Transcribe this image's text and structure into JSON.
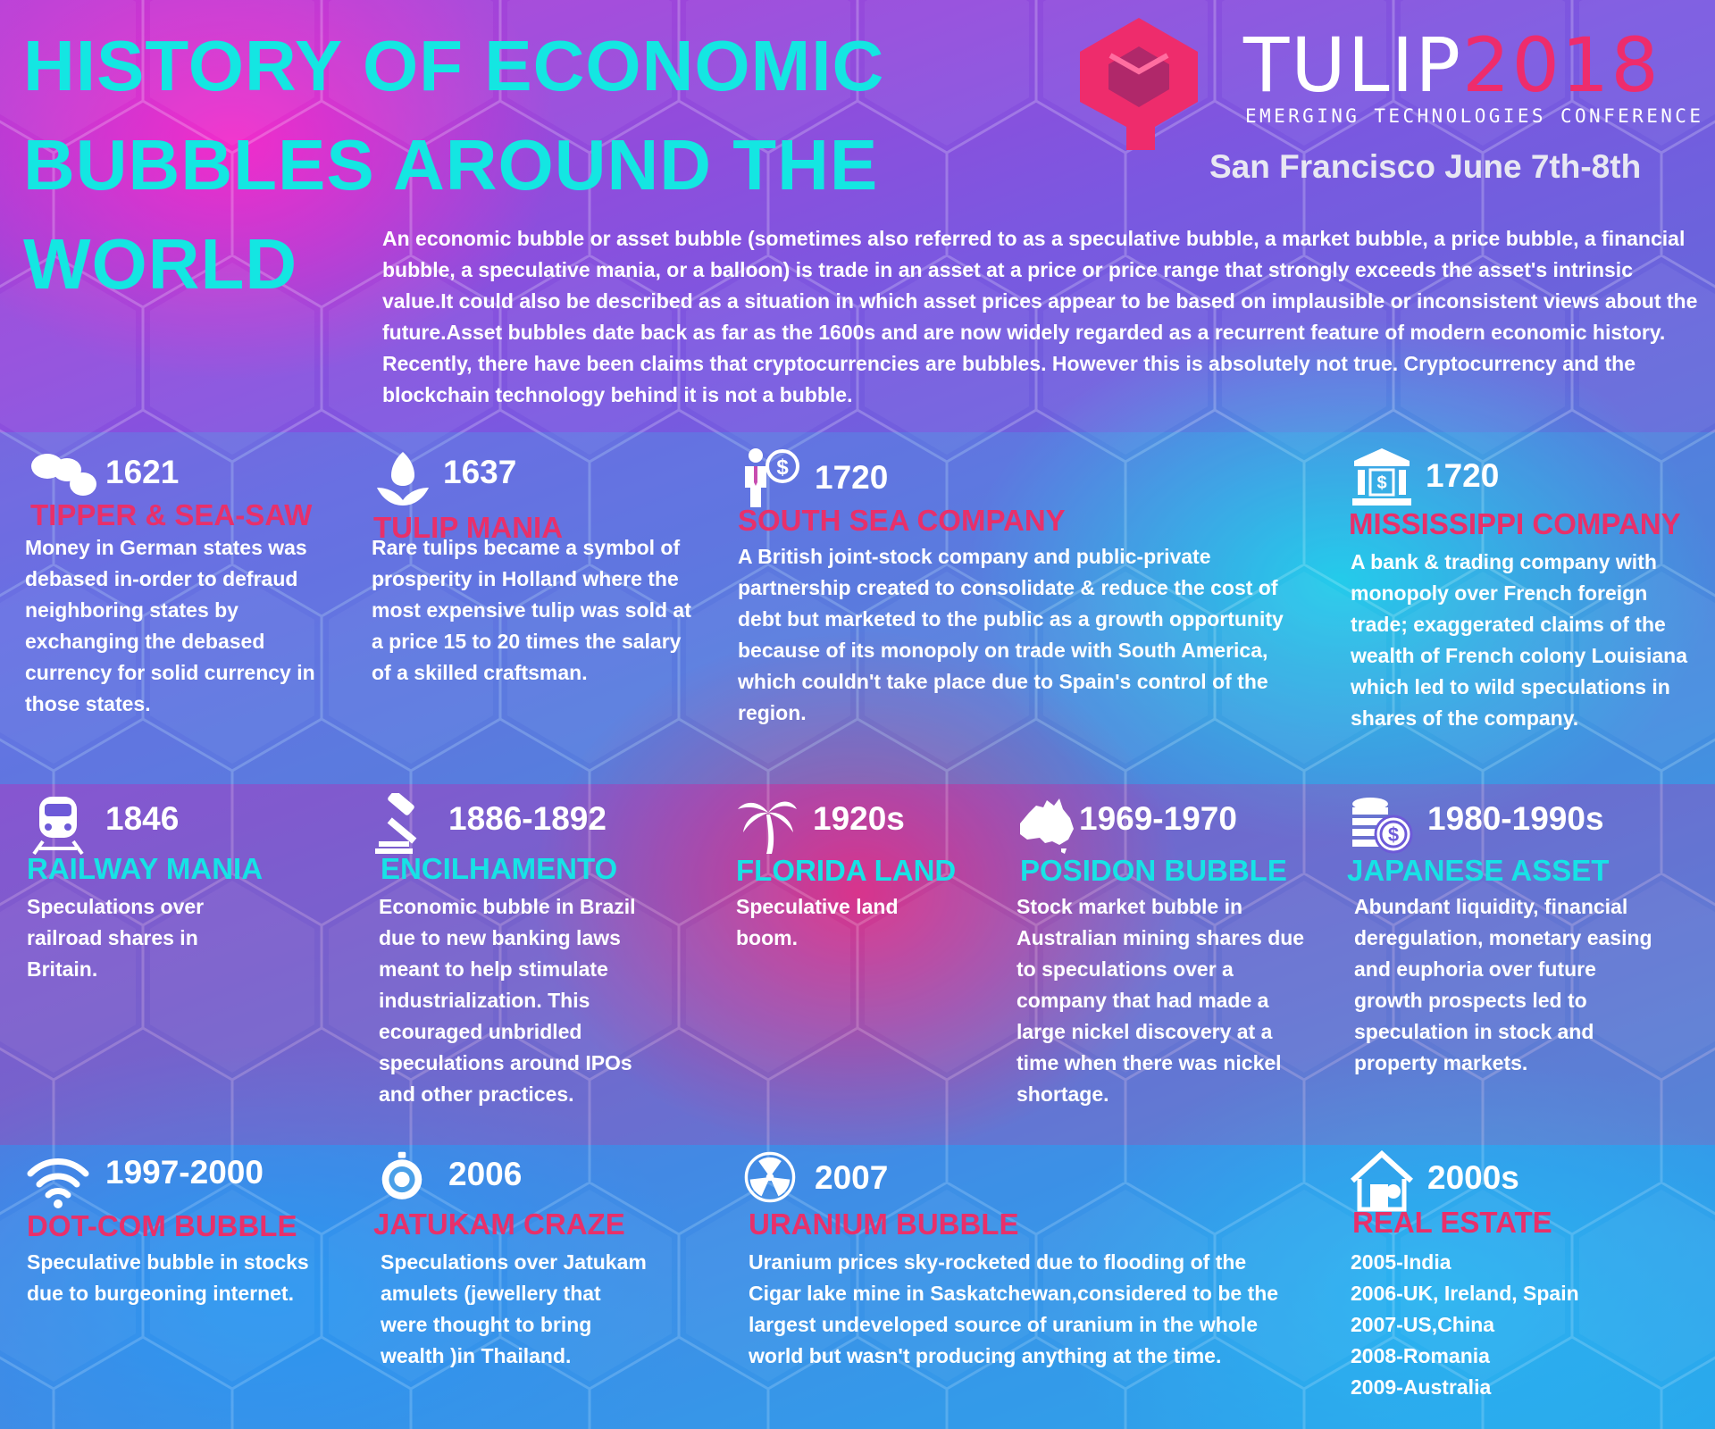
{
  "header": {
    "title": "HISTORY OF ECONOMIC BUBBLES AROUND THE WORLD",
    "intro": "An economic bubble or asset bubble (sometimes also referred to as a speculative bubble, a market bubble, a price bubble, a financial bubble, a speculative mania, or a balloon) is trade in an asset at a price or price range that strongly exceeds the asset's intrinsic value.It could also be described as a situation in which asset prices appear to be based on implausible or inconsistent views about the future.Asset bubbles date back as far as the 1600s and are now widely regarded as a recurrent feature of modern economic history. Recently, there have been claims that cryptocurrencies are bubbles. However this is absolutely not true. Cryptocurrency and the blockchain technology behind it is not a bubble."
  },
  "logo": {
    "word": "TULIP",
    "year": "2018",
    "tagline": "EMERGING TECHNOLOGIES CONFERENCE",
    "event_info": "San Francisco June 7th-8th"
  },
  "colors": {
    "title": "#14e6e2",
    "pink_heading": "#e8306a",
    "cyan_heading": "#17e2e6",
    "brand_pink": "#ee2c6c"
  },
  "bubbles": [
    {
      "icon": "coins-icon",
      "year": "1621",
      "name": "TIPPER & SEA-SAW",
      "color": "pink",
      "desc": "Money in German states was debased in-order to defraud neighboring states by exchanging the debased currency for solid currency in those states."
    },
    {
      "icon": "tulip-icon",
      "year": "1637",
      "name": "TULIP MANIA",
      "color": "pink",
      "desc": "Rare tulips became a symbol  of prosperity in Holland where the most expensive tulip was sold at a price 15 to 20 times the salary of a skilled craftsman."
    },
    {
      "icon": "businessman-dollar-icon",
      "year": "1720",
      "name": "SOUTH SEA COMPANY",
      "color": "pink",
      "desc": "A British joint-stock company and public-private partnership created to consolidate & reduce the cost of debt but marketed to the public as a growth opportunity because of its monopoly on trade with South America, which couldn't take place due to Spain's control of the region."
    },
    {
      "icon": "bank-icon",
      "year": "1720",
      "name": "MISSISSIPPI COMPANY",
      "color": "pink",
      "desc": "A bank & trading company with monopoly over French foreign trade; exaggerated claims of the wealth of French colony Louisiana which led to wild speculations in shares of the company."
    },
    {
      "icon": "train-icon",
      "year": "1846",
      "name": "RAILWAY MANIA",
      "color": "cyan",
      "desc": "Speculations over railroad shares in Britain."
    },
    {
      "icon": "gavel-icon",
      "year": "1886-1892",
      "name": "ENCILHAMENTO",
      "color": "cyan",
      "desc": "Economic bubble in Brazil due to new banking laws meant to help stimulate industrialization. This ecouraged unbridled speculations around IPOs and other practices."
    },
    {
      "icon": "palm-tree-icon",
      "year": "1920s",
      "name": "FLORIDA LAND",
      "color": "cyan",
      "desc": "Speculative land boom."
    },
    {
      "icon": "australia-map-icon",
      "year": "1969-1970",
      "name": "POSIDON BUBBLE",
      "color": "cyan",
      "desc": "Stock market bubble in Australian mining shares due to speculations over a company that had made a large nickel discovery at a time when there was nickel shortage."
    },
    {
      "icon": "coin-stack-icon",
      "year": "1980-1990s",
      "name": "JAPANESE ASSET",
      "color": "cyan",
      "desc": "Abundant liquidity, financial deregulation, monetary easing and euphoria over future growth prospects led to speculation in stock and property markets."
    },
    {
      "icon": "wifi-icon",
      "year": "1997-2000",
      "name": "DOT-COM BUBBLE",
      "color": "pink",
      "desc": "Speculative bubble in stocks due to burgeoning internet."
    },
    {
      "icon": "amulet-icon",
      "year": "2006",
      "name": "JATUKAM CRAZE",
      "color": "pink",
      "desc": "Speculations over Jatukam amulets (jewellery that were thought to bring wealth )in Thailand."
    },
    {
      "icon": "radiation-icon",
      "year": "2007",
      "name": "URANIUM BUBBLE",
      "color": "pink",
      "desc": "Uranium prices sky-rocketed due to flooding of the Cigar lake mine in Saskatchewan,considered to be the largest undeveloped source of uranium in the whole world but wasn't producing anything at the time."
    },
    {
      "icon": "house-icon",
      "year": "2000s",
      "name": "REAL ESTATE",
      "color": "pink",
      "desc": "2005-India\n2006-UK, Ireland, Spain\n2007-US,China\n2008-Romania\n2009-Australia"
    }
  ]
}
